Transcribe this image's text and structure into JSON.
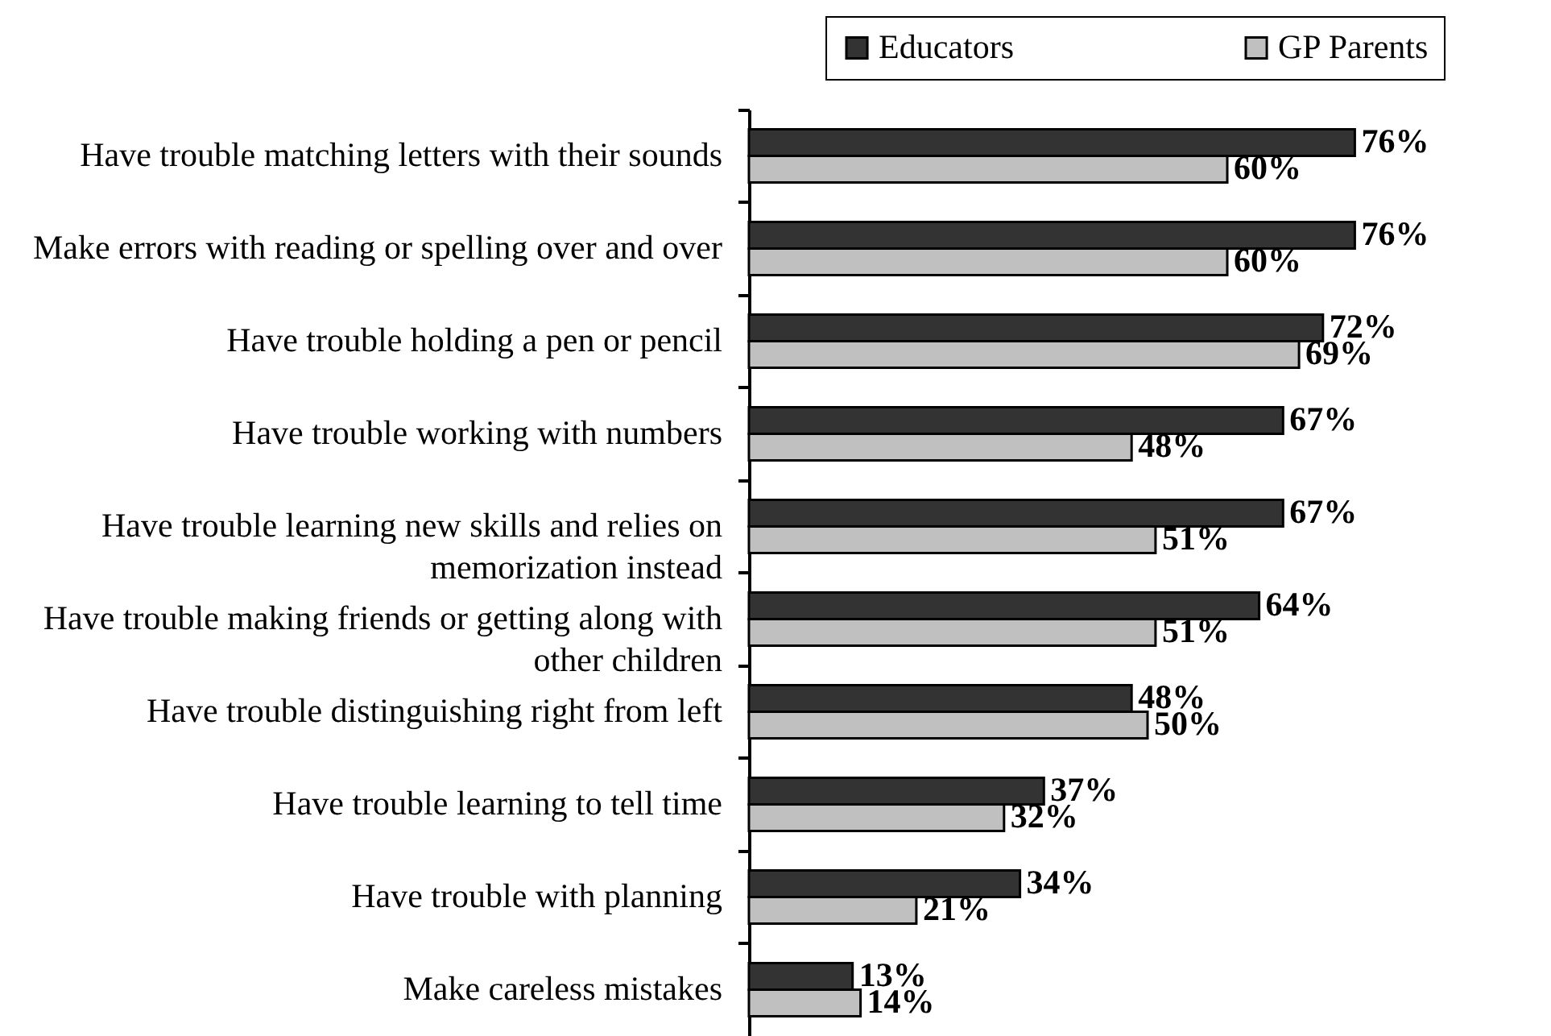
{
  "chart_data": {
    "type": "bar",
    "orientation": "horizontal",
    "tick_labels": "y",
    "legend": "top",
    "grid": false,
    "categories": [
      "Have trouble matching letters with their sounds",
      "Make errors with reading or spelling over and over",
      "Have trouble holding a pen or pencil",
      "Have trouble working with numbers",
      "Have trouble learning new skills and relies on memorization instead",
      "Have trouble making friends or getting along with other children",
      "Have trouble distinguishing right from left",
      "Have trouble learning to tell time",
      "Have trouble with planning",
      "Make careless mistakes"
    ],
    "series": [
      {
        "name": "Educators",
        "color": "#333333",
        "values": [
          76,
          76,
          72,
          67,
          67,
          64,
          48,
          37,
          34,
          13
        ],
        "value_labels": [
          "76%",
          "76%",
          "72%",
          "67%",
          "67%",
          "64%",
          "48%",
          "37%",
          "34%",
          "13%"
        ]
      },
      {
        "name": "GP Parents",
        "color": "#c0c0c0",
        "values": [
          60,
          60,
          69,
          48,
          51,
          51,
          50,
          32,
          21,
          14
        ],
        "value_labels": [
          "60%",
          "60%",
          "69%",
          "48%",
          "51%",
          "51%",
          "50%",
          "32%",
          "21%",
          "14%"
        ]
      }
    ]
  }
}
